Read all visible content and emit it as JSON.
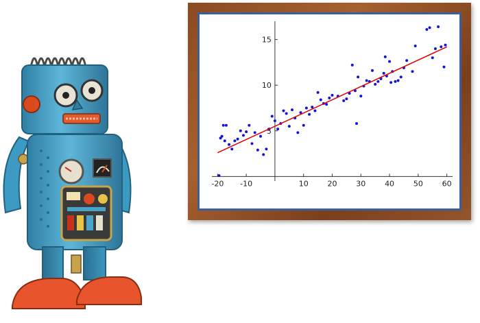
{
  "colors": {
    "frame_wood": "#93532a",
    "frame_liner": "#3b5f9a",
    "points": "#1414d6",
    "regression_line": "#e00000",
    "robot_body": "#4aa3c8",
    "robot_feet": "#e8552c"
  },
  "icons": {
    "robot": "toy-robot-illustration"
  },
  "chart_data": {
    "type": "scatter",
    "title": "",
    "xlabel": "",
    "ylabel": "",
    "xlim": [
      -22,
      62
    ],
    "ylim": [
      -0.5,
      17
    ],
    "x_ticks": [
      -20,
      -10,
      10,
      20,
      30,
      40,
      50,
      60
    ],
    "y_ticks": [
      5,
      10,
      15
    ],
    "x_tick_labels": [
      "-20",
      "-10",
      "10",
      "20",
      "30",
      "40",
      "50",
      "60"
    ],
    "y_tick_labels": [
      "5",
      "10",
      "15"
    ],
    "grid": false,
    "legend": "none",
    "fit_line": {
      "x": [
        -20,
        60
      ],
      "y": [
        2.6,
        14.2
      ]
    },
    "points": [
      [
        -19.5,
        0.1
      ],
      [
        -19,
        4.2
      ],
      [
        -18.5,
        4.4
      ],
      [
        -18,
        5.6
      ],
      [
        -17,
        5.6
      ],
      [
        -17.5,
        3.9
      ],
      [
        -16,
        3.5
      ],
      [
        -15,
        3.0
      ],
      [
        -14,
        3.9
      ],
      [
        -13,
        4.1
      ],
      [
        -12,
        5.0
      ],
      [
        -11,
        4.5
      ],
      [
        -10,
        4.9
      ],
      [
        -9,
        5.6
      ],
      [
        -8,
        3.6
      ],
      [
        -7,
        4.8
      ],
      [
        -6,
        2.9
      ],
      [
        -5,
        4.4
      ],
      [
        -4,
        2.4
      ],
      [
        -3,
        3.0
      ],
      [
        -2,
        5.2
      ],
      [
        -1,
        6.6
      ],
      [
        0,
        6.1
      ],
      [
        1,
        5.2
      ],
      [
        2,
        5.8
      ],
      [
        3,
        7.2
      ],
      [
        4,
        6.9
      ],
      [
        5,
        5.5
      ],
      [
        6,
        7.3
      ],
      [
        7,
        6.4
      ],
      [
        8,
        4.8
      ],
      [
        9,
        7.0
      ],
      [
        10,
        5.6
      ],
      [
        11,
        7.5
      ],
      [
        12,
        6.8
      ],
      [
        13,
        7.6
      ],
      [
        14,
        7.2
      ],
      [
        15,
        9.2
      ],
      [
        16,
        8.4
      ],
      [
        17,
        8.0
      ],
      [
        18,
        7.9
      ],
      [
        19,
        8.6
      ],
      [
        20,
        8.9
      ],
      [
        22,
        8.8
      ],
      [
        24,
        8.3
      ],
      [
        25,
        8.5
      ],
      [
        26,
        9.1
      ],
      [
        27,
        12.2
      ],
      [
        28,
        9.4
      ],
      [
        28.5,
        5.8
      ],
      [
        29,
        10.9
      ],
      [
        30,
        8.8
      ],
      [
        31,
        9.9
      ],
      [
        32,
        10.5
      ],
      [
        33,
        10.4
      ],
      [
        34,
        11.6
      ],
      [
        35,
        10.1
      ],
      [
        36,
        10.4
      ],
      [
        37,
        10.7
      ],
      [
        38,
        11.3
      ],
      [
        38.5,
        13.1
      ],
      [
        39,
        11.0
      ],
      [
        40,
        12.6
      ],
      [
        40.5,
        10.3
      ],
      [
        41,
        11.5
      ],
      [
        42,
        10.4
      ],
      [
        43,
        10.5
      ],
      [
        44,
        10.9
      ],
      [
        45,
        11.9
      ],
      [
        46,
        12.7
      ],
      [
        48,
        11.5
      ],
      [
        49,
        14.3
      ],
      [
        53,
        16.1
      ],
      [
        54,
        16.3
      ],
      [
        55,
        13.0
      ],
      [
        56,
        14.0
      ],
      [
        57,
        16.4
      ],
      [
        58,
        14.2
      ],
      [
        59,
        12.0
      ],
      [
        59.5,
        14.4
      ]
    ]
  }
}
